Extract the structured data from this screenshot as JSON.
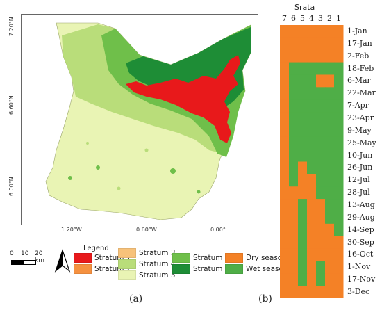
{
  "map": {
    "lat_labels": [
      "7.20°N",
      "6.60°N",
      "6.00°N"
    ],
    "lon_labels": [
      "1.20°W",
      "0.60°W",
      "0.00°"
    ],
    "scale_bar": {
      "labels": [
        "0",
        "10",
        "20 km"
      ]
    },
    "legend": {
      "title": "Legend",
      "items": [
        {
          "label": "Stratum 1",
          "color": "#e8191b"
        },
        {
          "label": "Stratum 2",
          "color": "#f59140"
        },
        {
          "label": "Stratum 3",
          "color": "#f7c27a"
        },
        {
          "label": "Stratum 4",
          "color": "#b9dd7a"
        },
        {
          "label": "Stratum 5",
          "color": "#e9f4b4"
        },
        {
          "label": "Stratum 6",
          "color": "#6fbf4a"
        },
        {
          "label": "Stratum 7",
          "color": "#1e8d36"
        },
        {
          "label": "Dry season",
          "color": "#f48126"
        },
        {
          "label": "Wet season",
          "color": "#4fae47"
        }
      ]
    },
    "caption": "(a)"
  },
  "grid": {
    "title": "Srata",
    "columns": [
      "7",
      "6",
      "5",
      "4",
      "3",
      "2",
      "1"
    ],
    "rows": [
      "1-Jan",
      "17-Jan",
      "2-Feb",
      "18-Feb",
      "6-Mar",
      "22-Mar",
      "7-Apr",
      "23-Apr",
      "9-May",
      "25-May",
      "10-Jun",
      "26-Jun",
      "12-Jul",
      "28-Jul",
      "13-Aug",
      "29-Aug",
      "14-Sep",
      "30-Sep",
      "16-Oct",
      "1-Nov",
      "17-Nov",
      "3-Dec"
    ],
    "dry_color": "#f48126",
    "wet_color": "#4fae47",
    "caption": "(b)",
    "seasons": [
      [
        "D",
        "D",
        "D",
        "D",
        "D",
        "D",
        "D"
      ],
      [
        "D",
        "D",
        "D",
        "D",
        "D",
        "D",
        "D"
      ],
      [
        "D",
        "D",
        "D",
        "D",
        "D",
        "D",
        "D"
      ],
      [
        "D",
        "W",
        "W",
        "W",
        "W",
        "W",
        "W"
      ],
      [
        "D",
        "W",
        "W",
        "W",
        "D",
        "D",
        "W"
      ],
      [
        "D",
        "W",
        "W",
        "W",
        "W",
        "W",
        "W"
      ],
      [
        "D",
        "W",
        "W",
        "W",
        "W",
        "W",
        "W"
      ],
      [
        "D",
        "W",
        "W",
        "W",
        "W",
        "W",
        "W"
      ],
      [
        "D",
        "W",
        "W",
        "W",
        "W",
        "W",
        "W"
      ],
      [
        "D",
        "W",
        "W",
        "W",
        "W",
        "W",
        "W"
      ],
      [
        "D",
        "W",
        "W",
        "W",
        "W",
        "W",
        "W"
      ],
      [
        "D",
        "W",
        "D",
        "W",
        "W",
        "W",
        "W"
      ],
      [
        "D",
        "W",
        "D",
        "D",
        "W",
        "W",
        "W"
      ],
      [
        "D",
        "D",
        "D",
        "D",
        "W",
        "W",
        "W"
      ],
      [
        "D",
        "D",
        "W",
        "D",
        "D",
        "W",
        "W"
      ],
      [
        "D",
        "D",
        "W",
        "D",
        "D",
        "W",
        "W"
      ],
      [
        "D",
        "D",
        "W",
        "D",
        "D",
        "D",
        "W"
      ],
      [
        "D",
        "D",
        "W",
        "D",
        "D",
        "D",
        "D"
      ],
      [
        "D",
        "D",
        "W",
        "D",
        "D",
        "D",
        "D"
      ],
      [
        "D",
        "D",
        "W",
        "D",
        "W",
        "D",
        "D"
      ],
      [
        "D",
        "D",
        "W",
        "D",
        "W",
        "D",
        "D"
      ],
      [
        "D",
        "D",
        "D",
        "D",
        "D",
        "D",
        "D"
      ]
    ]
  }
}
